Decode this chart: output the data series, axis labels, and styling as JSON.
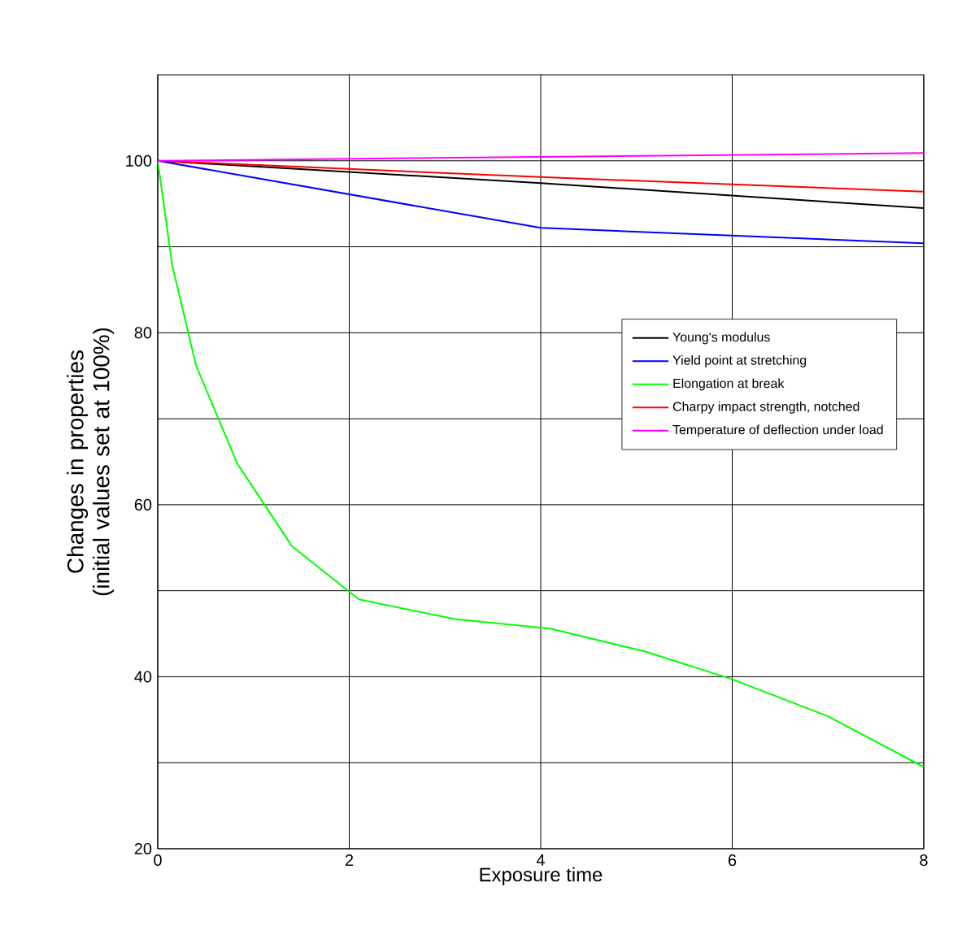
{
  "chart_data": {
    "type": "line",
    "xlabel": "Exposure time",
    "ylabel": "Changes in properties (initial values set at 100%)",
    "xlim": [
      0,
      8
    ],
    "ylim": [
      20,
      110
    ],
    "xticks": [
      0,
      2,
      4,
      6,
      8
    ],
    "yticks": [
      20,
      {
        "value": 30,
        "label": null
      },
      40,
      {
        "value": 50,
        "label": null
      },
      60,
      {
        "value": 70,
        "label": null
      },
      80,
      {
        "value": 90,
        "label": null
      },
      100
    ],
    "grid": true,
    "legend": "right",
    "line_style": "solid",
    "marker": "none",
    "series": [
      {
        "name": "Young's modulus",
        "color": "#000000",
        "x": [
          0,
          4,
          8
        ],
        "values": [
          100,
          97.4,
          94.5
        ]
      },
      {
        "name": "Yield point at stretching",
        "color": "#0000ff",
        "x": [
          0,
          4,
          8
        ],
        "values": [
          100,
          92.2,
          90.4
        ]
      },
      {
        "name": "Elongation at break",
        "color": "#00ff00",
        "x": [
          0,
          0.15,
          0.4,
          0.83,
          1.4,
          2.1,
          3.1,
          4.1,
          5.1,
          6,
          7,
          8
        ],
        "values": [
          100,
          87.9,
          76.2,
          64.8,
          55.2,
          49.0,
          46.7,
          45.6,
          42.9,
          39.7,
          35.4,
          29.5
        ]
      },
      {
        "name": "Charpy impact strength, notched",
        "color": "#ff0000",
        "x": [
          0,
          4,
          8
        ],
        "values": [
          100,
          98.1,
          96.4
        ]
      },
      {
        "name": "Temperature of deflection under load",
        "color": "#ff00ff",
        "x": [
          0,
          8
        ],
        "values": [
          100,
          100.9
        ]
      }
    ]
  }
}
